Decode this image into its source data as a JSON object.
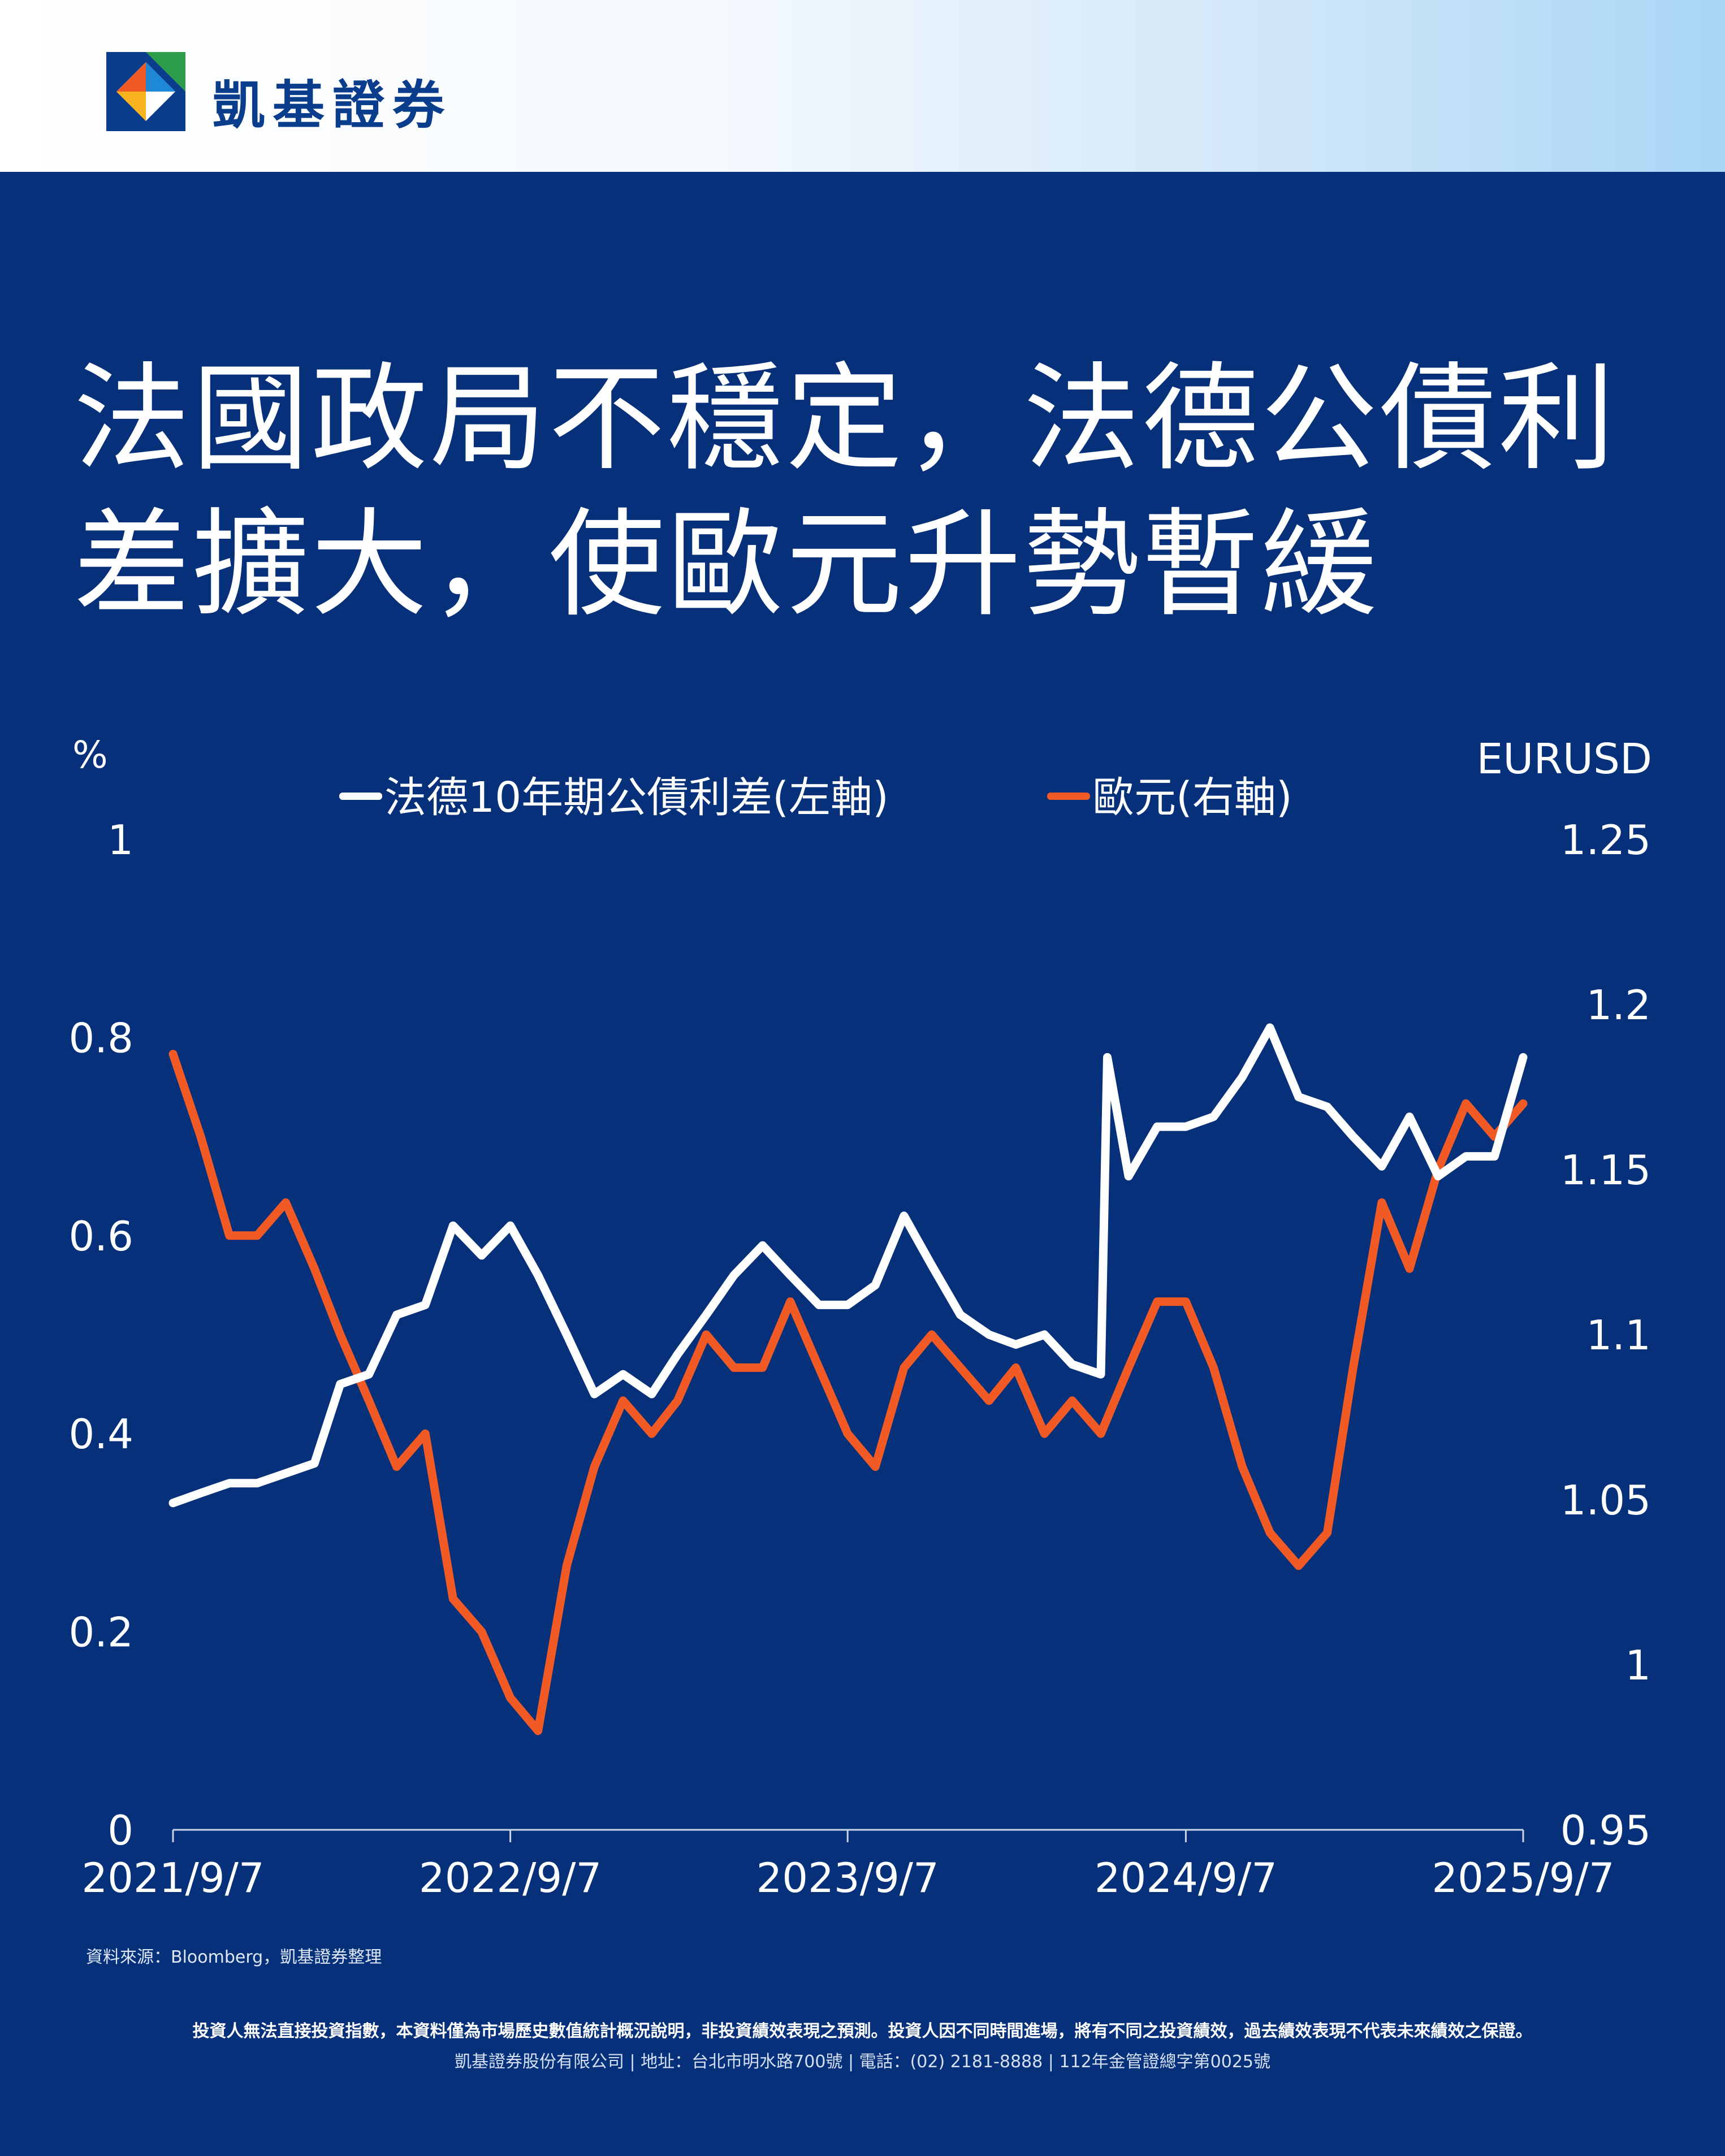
{
  "brand": {
    "name": "凱基證券",
    "colors": {
      "navy": "#06317a",
      "white_series": "#ffffff",
      "orange_series": "#f15a24"
    }
  },
  "title_lines": [
    "法國政局不穩定，法德公債利",
    "差擴大，使歐元升勢暫緩"
  ],
  "source_note": "資料來源：Bloomberg，凱基證券整理",
  "disclaimer": "投資人無法直接投資指數，本資料僅為市場歷史數值統計概況說明，非投資績效表現之預測。投資人因不同時間進場，將有不同之投資績效，過去績效表現不代表未來績效之保證。",
  "company_info": "凱基證券股份有限公司 | 地址：台北市明水路700號 | 電話：(02) 2181-8888 | 112年金管證總字第0025號",
  "chart_data": {
    "type": "line",
    "left_axis_label": "%",
    "right_axis_label": "EURUSD",
    "x_ticks": [
      "2021/9/7",
      "2022/9/7",
      "2023/9/7",
      "2024/9/7",
      "2025/9/7"
    ],
    "left_axis": {
      "min": 0,
      "max": 1,
      "ticks": [
        "0",
        "0.2",
        "0.4",
        "0.6",
        "0.8",
        "1"
      ]
    },
    "right_axis": {
      "min": 0.95,
      "max": 1.25,
      "ticks": [
        "0.95",
        "1",
        "1.05",
        "1.1",
        "1.15",
        "1.2",
        "1.25"
      ]
    },
    "series": [
      {
        "name": "法德10年期公債利差(左軸)",
        "axis": "left",
        "color": "#ffffff",
        "x": [
          "2021/9/7",
          "2021/10/7",
          "2021/11/7",
          "2021/12/7",
          "2022/1/7",
          "2022/2/7",
          "2022/3/7",
          "2022/4/7",
          "2022/5/7",
          "2022/6/7",
          "2022/7/7",
          "2022/8/7",
          "2022/9/7",
          "2022/10/7",
          "2022/11/7",
          "2022/12/7",
          "2023/1/7",
          "2023/2/7",
          "2023/3/7",
          "2023/4/7",
          "2023/5/7",
          "2023/6/7",
          "2023/7/7",
          "2023/8/7",
          "2023/9/7",
          "2023/10/7",
          "2023/11/7",
          "2023/12/7",
          "2024/1/7",
          "2024/2/7",
          "2024/3/7",
          "2024/4/7",
          "2024/5/7",
          "2024/6/7",
          "2024/6/14",
          "2024/7/7",
          "2024/8/7",
          "2024/9/7",
          "2024/10/7",
          "2024/11/7",
          "2024/12/7",
          "2025/1/7",
          "2025/2/7",
          "2025/3/7",
          "2025/4/7",
          "2025/5/7",
          "2025/6/7",
          "2025/7/7",
          "2025/8/7",
          "2025/9/7"
        ],
        "values": [
          0.33,
          0.34,
          0.35,
          0.35,
          0.36,
          0.37,
          0.45,
          0.46,
          0.52,
          0.53,
          0.61,
          0.58,
          0.61,
          0.56,
          0.5,
          0.44,
          0.46,
          0.44,
          0.48,
          0.52,
          0.56,
          0.59,
          0.56,
          0.53,
          0.53,
          0.55,
          0.62,
          0.57,
          0.52,
          0.5,
          0.49,
          0.5,
          0.47,
          0.46,
          0.78,
          0.66,
          0.71,
          0.71,
          0.72,
          0.76,
          0.81,
          0.74,
          0.73,
          0.7,
          0.67,
          0.72,
          0.66,
          0.68,
          0.68,
          0.78
        ]
      },
      {
        "name": "歐元(右軸)",
        "axis": "right",
        "color": "#f15a24",
        "x": [
          "2021/9/7",
          "2021/10/7",
          "2021/11/7",
          "2021/12/7",
          "2022/1/7",
          "2022/2/7",
          "2022/3/7",
          "2022/4/7",
          "2022/5/7",
          "2022/6/7",
          "2022/7/7",
          "2022/8/7",
          "2022/9/7",
          "2022/10/7",
          "2022/11/7",
          "2022/12/7",
          "2023/1/7",
          "2023/2/7",
          "2023/3/7",
          "2023/4/7",
          "2023/5/7",
          "2023/6/7",
          "2023/7/7",
          "2023/8/7",
          "2023/9/7",
          "2023/10/7",
          "2023/11/7",
          "2023/12/7",
          "2024/1/7",
          "2024/2/7",
          "2024/3/7",
          "2024/4/7",
          "2024/5/7",
          "2024/6/7",
          "2024/7/7",
          "2024/8/7",
          "2024/9/7",
          "2024/10/7",
          "2024/11/7",
          "2024/12/7",
          "2025/1/7",
          "2025/2/7",
          "2025/3/7",
          "2025/4/7",
          "2025/5/7",
          "2025/6/7",
          "2025/7/7",
          "2025/8/7",
          "2025/9/7"
        ],
        "values": [
          1.185,
          1.16,
          1.13,
          1.13,
          1.14,
          1.12,
          1.1,
          1.08,
          1.06,
          1.07,
          1.02,
          1.01,
          0.99,
          0.98,
          1.03,
          1.06,
          1.08,
          1.07,
          1.08,
          1.1,
          1.09,
          1.09,
          1.11,
          1.09,
          1.07,
          1.06,
          1.09,
          1.1,
          1.09,
          1.08,
          1.09,
          1.07,
          1.08,
          1.07,
          1.09,
          1.11,
          1.11,
          1.09,
          1.06,
          1.04,
          1.03,
          1.04,
          1.09,
          1.14,
          1.12,
          1.15,
          1.17,
          1.16,
          1.17
        ]
      }
    ]
  }
}
